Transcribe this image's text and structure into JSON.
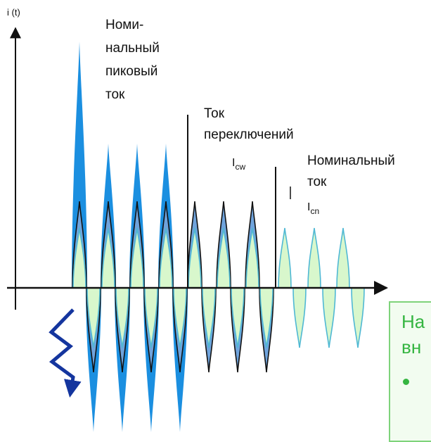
{
  "axis": {
    "y_label": "i (t)"
  },
  "labels": {
    "peak": [
      "Номи-",
      "нальный",
      "пиковый",
      "ток"
    ],
    "switching": [
      "Ток",
      "переключений"
    ],
    "switching_symbol": {
      "main": "I",
      "sub": "cw"
    },
    "nominal": [
      "Номинальный",
      "ток"
    ],
    "nominal_symbol": {
      "main": "I",
      "sub": "cn"
    }
  },
  "callout": {
    "line1": "На",
    "line2": "вн"
  },
  "colors": {
    "peak_fill": "#1b8fe0",
    "switching_fill": "#6fa3dc",
    "nominal_fill": "#d8f7cc",
    "nominal_stroke": "#4fb8d4",
    "arrow_blue": "#14359e",
    "callout_text": "#35b541"
  },
  "icons": {
    "fault": "lightning-bolt-icon"
  }
}
